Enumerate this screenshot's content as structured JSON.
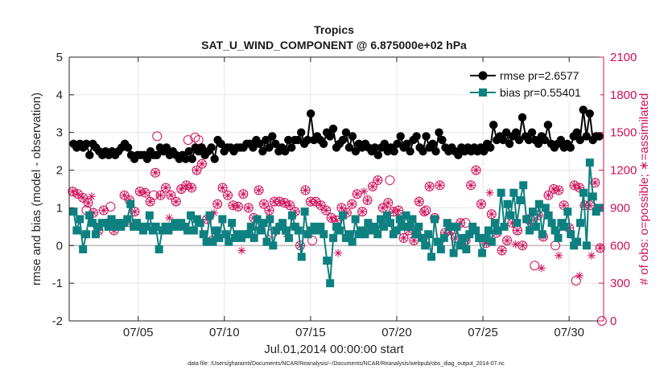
{
  "chart_data": {
    "type": "line",
    "title": "Tropics",
    "subtitle": "SAT_U_WIND_COMPONENT @ 6.875000e+02 hPa",
    "xlabel": "Jul.01,2014 00:00:00 start",
    "ylabel_left": "rmse and bias (model - observation)",
    "ylabel_right": "# of obs: o=possible; ∗=assimilated",
    "xlim": [
      1,
      32
    ],
    "ylim_left": [
      -2,
      5
    ],
    "ylim_right": [
      0,
      2100
    ],
    "x_ticks": [
      5,
      10,
      15,
      20,
      25,
      30
    ],
    "x_tick_labels": [
      "07/05",
      "07/10",
      "07/15",
      "07/20",
      "07/25",
      "07/30"
    ],
    "y_ticks_left": [
      -2,
      -1,
      0,
      1,
      2,
      3,
      4,
      5
    ],
    "y_tick_labels_left": [
      "-2",
      "-1",
      "0",
      "1",
      "2",
      "3",
      "4",
      "5"
    ],
    "y_ticks_right": [
      0,
      300,
      600,
      900,
      1200,
      1500,
      1800,
      2100
    ],
    "y_tick_labels_right": [
      "0",
      "300",
      "600",
      "900",
      "1200",
      "1500",
      "1800",
      "2100"
    ],
    "grid": true,
    "legend_position": "top-right",
    "colors": {
      "rmse": "#000000",
      "bias": "#0f8080",
      "obs": "#d0105a",
      "zero_line": "#bfbfbf",
      "grid": "#e6e6e6"
    },
    "series": [
      {
        "name": "rmse",
        "legend": "rmse pr=2.6577",
        "marker": "circle",
        "values": [
          2.7,
          2.6,
          2.7,
          2.6,
          2.7,
          2.4,
          2.7,
          2.6,
          2.5,
          2.4,
          2.5,
          2.4,
          2.5,
          2.4,
          2.5,
          2.6,
          2.7,
          2.6,
          2.4,
          2.3,
          2.4,
          2.4,
          2.4,
          2.3,
          2.5,
          2.4,
          2.4,
          2.6,
          2.5,
          2.6,
          2.4,
          2.5,
          2.4,
          2.3,
          2.4,
          2.3,
          2.5,
          2.3,
          2.6,
          2.5,
          2.6,
          2.4,
          2.5,
          2.6,
          2.3,
          2.8,
          2.7,
          2.5,
          2.6,
          2.6,
          2.5,
          2.6,
          2.6,
          2.6,
          2.7,
          2.7,
          2.6,
          2.8,
          2.7,
          2.5,
          2.8,
          2.6,
          2.9,
          2.7,
          2.5,
          2.6,
          2.5,
          2.8,
          2.6,
          2.8,
          2.8,
          3.0,
          2.7,
          2.8,
          3.5,
          2.8,
          2.9,
          2.8,
          2.7,
          3.0,
          2.9,
          3.1,
          2.6,
          2.7,
          2.8,
          3.0,
          2.6,
          2.9,
          2.5,
          2.7,
          2.6,
          2.7,
          2.6,
          2.5,
          2.6,
          2.4,
          2.6,
          2.7,
          2.5,
          2.6,
          2.5,
          2.7,
          2.9,
          2.6,
          2.7,
          2.5,
          2.8,
          2.9,
          2.6,
          2.5,
          2.9,
          2.6,
          2.7,
          2.5,
          3.0,
          2.8,
          2.6,
          2.5,
          2.6,
          2.5,
          2.4,
          2.6,
          2.5,
          2.6,
          2.5,
          2.6,
          2.5,
          2.6,
          2.5,
          2.7,
          2.6,
          3.2,
          2.8,
          2.9,
          2.8,
          3.0,
          2.7,
          2.9,
          3.0,
          2.8,
          3.4,
          2.9,
          2.8,
          3.0,
          2.8,
          2.7,
          2.9,
          2.8,
          3.2,
          2.7,
          2.6,
          2.7,
          2.8,
          2.6,
          2.7,
          2.6,
          2.9,
          3.0,
          2.8,
          3.6,
          2.9,
          3.5,
          2.8,
          2.9,
          2.9
        ]
      },
      {
        "name": "bias",
        "legend": "bias pr=0.55401",
        "marker": "square",
        "values": [
          0.9,
          0.4,
          0.7,
          -0.1,
          0.3,
          0.8,
          0.6,
          0.3,
          0.5,
          0.6,
          0.6,
          0.5,
          0.7,
          0.5,
          0.6,
          0.5,
          0.6,
          0.7,
          1.1,
          0.5,
          0.6,
          0.5,
          0.4,
          0.5,
          0.8,
          0.4,
          0.5,
          -0.1,
          0.4,
          0.5,
          0.4,
          0.5,
          0.6,
          0.5,
          0.6,
          0.5,
          0.4,
          0.8,
          0.4,
          0.7,
          0.6,
          0.3,
          0.1,
          0.8,
          0.1,
          0.4,
          0.2,
          0.7,
          0.3,
          0.1,
          0.6,
          0.2,
          0.3,
          0.2,
          0.3,
          0.3,
          0.5,
          0.2,
          0.7,
          0.4,
          0.6,
          0.1,
          0.7,
          0.0,
          0.4,
          0.5,
          0.6,
          0.4,
          0.2,
          0.8,
          0.5,
          0.4,
          -0.3,
          0.9,
          0.3,
          0.4,
          0.5,
          0.4,
          0.5,
          0.3,
          -0.4,
          -1.0,
          0.2,
          0.5,
          0.4,
          0.8,
          0.2,
          0.3,
          0.1,
          0.7,
          0.3,
          0.4,
          0.3,
          0.6,
          0.4,
          0.5,
          0.3,
          0.7,
          0.5,
          0.8,
          0.6,
          0.3,
          0.4,
          0.7,
          0.5,
          0.8,
          0.5,
          0.7,
          0.3,
          0.5,
          0.2,
          0.0,
          0.3,
          -0.3,
          0.7,
          0.1,
          -0.1,
          0.2,
          0.6,
          0.5,
          -0.2,
          0.5,
          0.0,
          0.2,
          -0.1,
          0.3,
          0.5,
          0.4,
          0.2,
          -0.2,
          0.2,
          0.4,
          0.1,
          0.6,
          0.4,
          1.4,
          0.5,
          1.1,
          0.8,
          1.4,
          0.6,
          1.2,
          1.6,
          0.7,
          0.4,
          0.9,
          0.5,
          1.1,
          0.3,
          1.0,
          0.8,
          0.6,
          0.4,
          0.2,
          0.6,
          0.5,
          0.9,
          0.3,
          0.0,
          0.1,
          0.6,
          1.4,
          0.0,
          2.2,
          1.3,
          0.9,
          1.0
        ]
      }
    ],
    "obs_possible_and_assimilated": [
      [
        1.2,
        1030
      ],
      [
        1.5,
        1010
      ],
      [
        1.8,
        980
      ],
      [
        2.1,
        940
      ],
      [
        2.4,
        860
      ],
      [
        2.7,
        720
      ],
      [
        3.0,
        880
      ],
      [
        3.3,
        780
      ],
      [
        3.6,
        720
      ],
      [
        3.9,
        760
      ],
      [
        4.2,
        1000
      ],
      [
        4.5,
        960
      ],
      [
        4.8,
        870
      ],
      [
        5.1,
        1030
      ],
      [
        5.4,
        1020
      ],
      [
        5.7,
        950
      ],
      [
        6.0,
        1180
      ],
      [
        6.3,
        1000
      ],
      [
        6.6,
        1060
      ],
      [
        6.9,
        1000
      ],
      [
        7.2,
        950
      ],
      [
        7.5,
        1050
      ],
      [
        7.8,
        1080
      ],
      [
        8.1,
        1060
      ],
      [
        8.4,
        1200
      ],
      [
        8.7,
        1250
      ],
      [
        9.0,
        810
      ],
      [
        9.3,
        640
      ],
      [
        9.6,
        930
      ],
      [
        9.9,
        1060
      ],
      [
        10.2,
        1000
      ],
      [
        10.5,
        920
      ],
      [
        10.8,
        910
      ],
      [
        11.1,
        1010
      ],
      [
        11.4,
        900
      ],
      [
        11.7,
        820
      ],
      [
        12.0,
        1040
      ],
      [
        12.3,
        930
      ],
      [
        12.6,
        880
      ],
      [
        12.9,
        950
      ],
      [
        13.2,
        950
      ],
      [
        13.5,
        940
      ],
      [
        13.8,
        920
      ],
      [
        14.1,
        870
      ],
      [
        14.4,
        600
      ],
      [
        14.7,
        1040
      ],
      [
        15.0,
        950
      ],
      [
        15.3,
        950
      ],
      [
        15.6,
        920
      ],
      [
        15.9,
        880
      ],
      [
        16.2,
        820
      ],
      [
        16.5,
        800
      ],
      [
        16.8,
        900
      ],
      [
        17.1,
        860
      ],
      [
        17.4,
        930
      ],
      [
        17.7,
        1010
      ],
      [
        18.0,
        870
      ],
      [
        18.3,
        960
      ],
      [
        18.6,
        1070
      ],
      [
        18.9,
        1120
      ],
      [
        19.2,
        900
      ],
      [
        19.5,
        940
      ],
      [
        19.8,
        870
      ],
      [
        20.1,
        880
      ],
      [
        20.4,
        660
      ],
      [
        20.7,
        720
      ],
      [
        21.0,
        640
      ],
      [
        21.3,
        950
      ],
      [
        21.6,
        870
      ],
      [
        21.9,
        1070
      ],
      [
        22.2,
        820
      ],
      [
        22.5,
        1080
      ],
      [
        22.8,
        700
      ],
      [
        23.1,
        720
      ],
      [
        23.4,
        660
      ],
      [
        23.7,
        780
      ],
      [
        24.0,
        640
      ],
      [
        24.3,
        1080
      ],
      [
        24.6,
        1200
      ],
      [
        24.9,
        930
      ],
      [
        25.2,
        620
      ],
      [
        25.5,
        850
      ],
      [
        25.8,
        700
      ],
      [
        26.1,
        560
      ],
      [
        26.4,
        640
      ],
      [
        26.7,
        780
      ],
      [
        27.0,
        720
      ],
      [
        27.3,
        600
      ],
      [
        27.6,
        810
      ],
      [
        27.9,
        770
      ],
      [
        28.2,
        840
      ],
      [
        28.5,
        670
      ],
      [
        28.8,
        1000
      ],
      [
        29.1,
        1050
      ],
      [
        29.4,
        1040
      ],
      [
        29.7,
        920
      ],
      [
        30.0,
        740
      ],
      [
        30.3,
        1080
      ],
      [
        30.6,
        1060
      ],
      [
        30.9,
        920
      ],
      [
        31.2,
        920
      ],
      [
        31.5,
        1100
      ],
      [
        31.8,
        580
      ]
    ],
    "obs_possible_only": [
      [
        2.0,
        880
      ],
      [
        3.4,
        910
      ],
      [
        5.9,
        1000
      ],
      [
        6.1,
        1470
      ],
      [
        7.9,
        1440
      ],
      [
        8.3,
        1460
      ],
      [
        8.5,
        1440
      ],
      [
        12.8,
        700
      ],
      [
        15.1,
        640
      ],
      [
        19.6,
        1120
      ],
      [
        21.7,
        880
      ],
      [
        24.0,
        780
      ],
      [
        27.0,
        720
      ],
      [
        28.0,
        440
      ],
      [
        29.2,
        600
      ],
      [
        30.4,
        320
      ],
      [
        31.9,
        0
      ]
    ],
    "obs_assimilated_only": [
      [
        2.3,
        990
      ],
      [
        4.6,
        770
      ],
      [
        6.8,
        820
      ],
      [
        9.4,
        860
      ],
      [
        11.0,
        560
      ],
      [
        13.6,
        690
      ],
      [
        16.6,
        540
      ],
      [
        18.1,
        1030
      ],
      [
        21.1,
        710
      ],
      [
        23.0,
        780
      ],
      [
        25.4,
        1020
      ],
      [
        26.9,
        610
      ],
      [
        28.4,
        420
      ],
      [
        29.4,
        520
      ],
      [
        30.6,
        360
      ],
      [
        31.3,
        520
      ]
    ]
  },
  "footnote": "data file: /Users/gharamti/Documents/NCAR/Reanalysis/~/Documents/NCAR/Reanalysis/webpub/obs_diag_output_2014-07.nc"
}
